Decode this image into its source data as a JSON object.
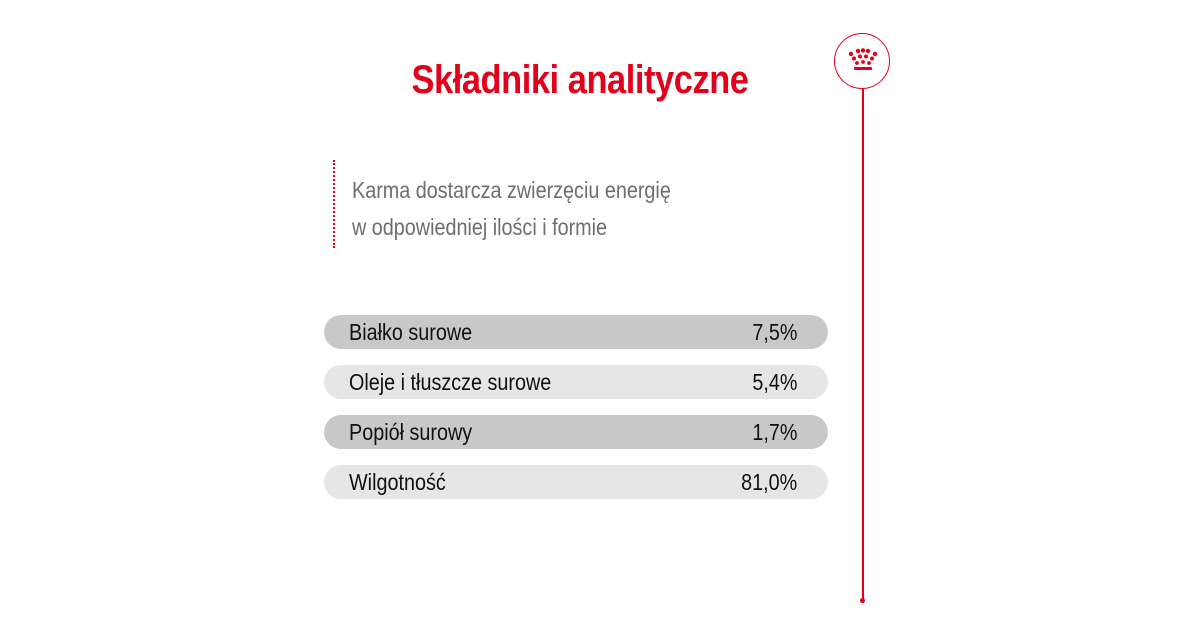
{
  "header": {
    "title": "Składniki analityczne"
  },
  "brand": {
    "logo_icon": "crown-icon",
    "accent_color": "#e2001a"
  },
  "intro": {
    "line1": "Karma dostarcza zwierzęciu energię",
    "line2": "w odpowiedniej ilości i formie"
  },
  "nutrients": [
    {
      "label": "Białko surowe",
      "value": "7,5%"
    },
    {
      "label": "Oleje i tłuszcze surowe",
      "value": "5,4%"
    },
    {
      "label": "Popiół surowy",
      "value": "1,7%"
    },
    {
      "label": "Wilgotność",
      "value": "81,0%"
    }
  ]
}
